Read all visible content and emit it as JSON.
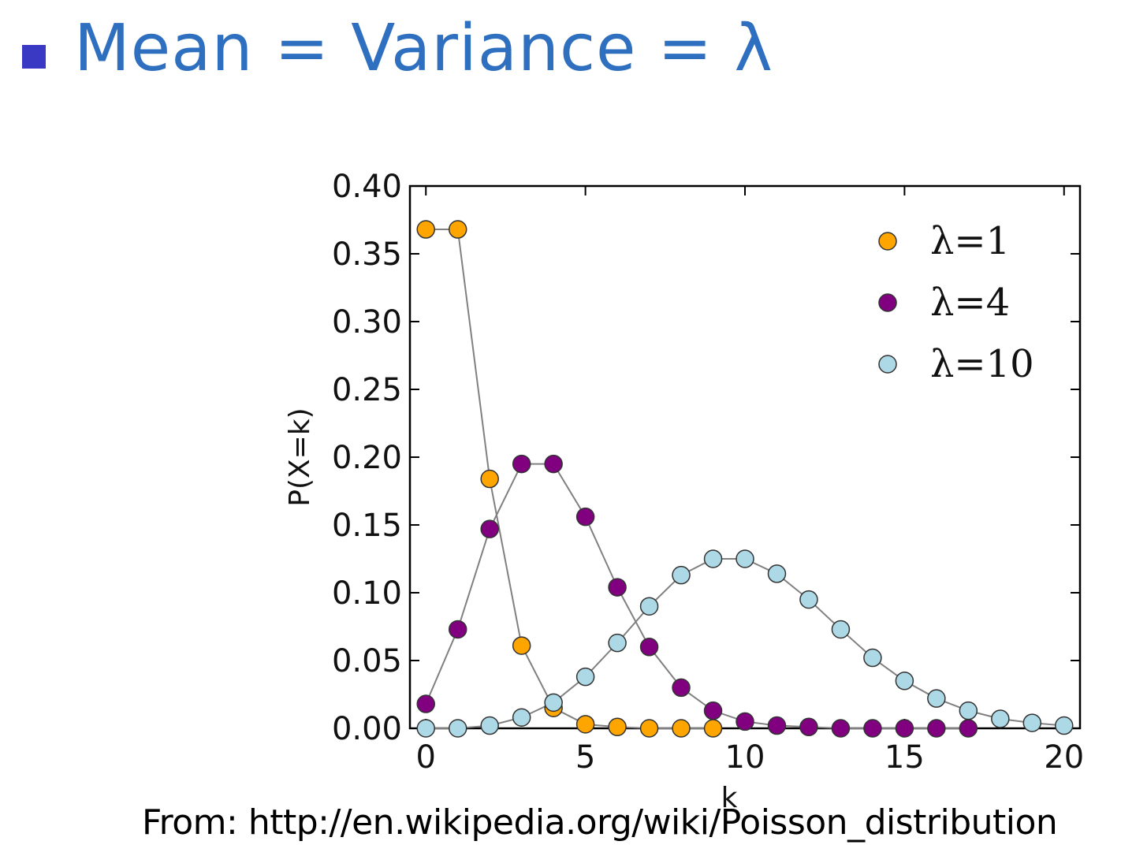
{
  "slide": {
    "heading": "Mean = Variance = λ",
    "source": "From: http://en.wikipedia.org/wiki/Poisson_distribution",
    "bullet_color": "#3a39c4",
    "heading_color": "#2f6fc0"
  },
  "chart_data": {
    "type": "scatter",
    "title": "",
    "xlabel": "k",
    "ylabel": "P(X=k)",
    "xlim": [
      -0.5,
      20.5
    ],
    "ylim": [
      0.0,
      0.4
    ],
    "xticks": [
      0,
      5,
      10,
      15,
      20
    ],
    "xtick_labels": [
      "0",
      "5",
      "10",
      "15",
      "20"
    ],
    "yticks": [
      0.0,
      0.05,
      0.1,
      0.15,
      0.2,
      0.25,
      0.3,
      0.35,
      0.4
    ],
    "ytick_labels": [
      "0.00",
      "0.05",
      "0.10",
      "0.15",
      "0.20",
      "0.25",
      "0.30",
      "0.35",
      "0.40"
    ],
    "grid": false,
    "legend_position": "top-right",
    "markers_connected": true,
    "line_color": "#808080",
    "x": [
      0,
      1,
      2,
      3,
      4,
      5,
      6,
      7,
      8,
      9,
      10,
      11,
      12,
      13,
      14,
      15,
      16,
      17,
      18,
      19,
      20
    ],
    "series": [
      {
        "name": "λ=1",
        "color": "#ffa500",
        "values": [
          0.368,
          0.368,
          0.184,
          0.061,
          0.015,
          0.003,
          0.001,
          0.0,
          0.0,
          0.0,
          null,
          null,
          null,
          null,
          null,
          null,
          null,
          null,
          null,
          null,
          null
        ]
      },
      {
        "name": "λ=4",
        "color": "#800080",
        "values": [
          0.018,
          0.073,
          0.147,
          0.195,
          0.195,
          0.156,
          0.104,
          0.06,
          0.03,
          0.013,
          0.005,
          0.002,
          0.001,
          0.0,
          0.0,
          0.0,
          0.0,
          0.0,
          null,
          null,
          null
        ]
      },
      {
        "name": "λ=10",
        "color": "#add8e6",
        "values": [
          0.0,
          0.0,
          0.002,
          0.008,
          0.019,
          0.038,
          0.063,
          0.09,
          0.113,
          0.125,
          0.125,
          0.114,
          0.095,
          0.073,
          0.052,
          0.035,
          0.022,
          0.013,
          0.007,
          0.004,
          0.002
        ]
      }
    ]
  }
}
